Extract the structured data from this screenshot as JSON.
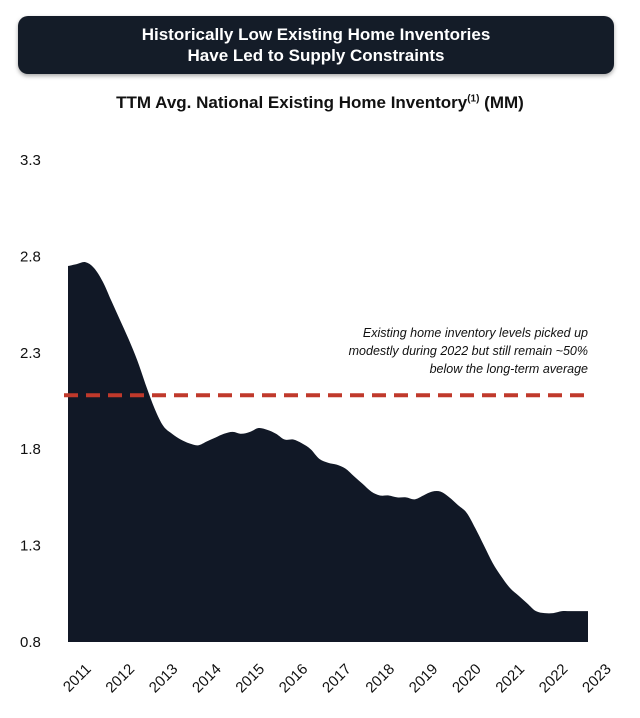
{
  "banner": {
    "line1": "Historically Low Existing Home Inventories",
    "line2": "Have Led to Supply Constraints"
  },
  "subtitle": {
    "text": "TTM Avg. National Existing Home Inventory",
    "superscript": "(1)",
    "unit": " (MM)"
  },
  "annotation": {
    "lines": [
      "Existing home inventory levels picked up",
      "modestly during 2022 but still remain ~50%",
      "below the long-term average"
    ]
  },
  "colors": {
    "area_fill": "#111826",
    "reference_line": "#c0392b",
    "banner_bg": "#141c28"
  },
  "chart_data": {
    "type": "area",
    "title": "TTM Avg. National Existing Home Inventory(1) (MM)",
    "xlabel": "",
    "ylabel": "",
    "ylim": [
      0.8,
      3.3
    ],
    "yticks": [
      "3.3",
      "2.8",
      "2.3",
      "1.8",
      "1.3",
      "0.8"
    ],
    "ytick_values": [
      3.3,
      2.8,
      2.3,
      1.8,
      1.3,
      0.8
    ],
    "xticks": [
      "2011",
      "2012",
      "2013",
      "2014",
      "2015",
      "2016",
      "2017",
      "2018",
      "2019",
      "2020",
      "2021",
      "2022",
      "2023"
    ],
    "xlim": [
      2011.0,
      2023.0
    ],
    "grid": false,
    "legend": "none",
    "reference_line": {
      "value": 2.08,
      "style": "dashed"
    },
    "series": [
      {
        "x": [
          2011.0,
          2011.2,
          2011.4,
          2011.6,
          2011.8,
          2012.0,
          2012.2,
          2012.4,
          2012.6,
          2012.8,
          2013.0,
          2013.2,
          2013.4,
          2013.6,
          2013.8,
          2014.0,
          2014.2,
          2014.4,
          2014.6,
          2014.8,
          2015.0,
          2015.2,
          2015.4,
          2015.6,
          2015.8,
          2016.0,
          2016.2,
          2016.4,
          2016.6,
          2016.8,
          2017.0,
          2017.2,
          2017.4,
          2017.6,
          2017.8,
          2018.0,
          2018.2,
          2018.4,
          2018.6,
          2018.8,
          2019.0,
          2019.2,
          2019.4,
          2019.6,
          2019.8,
          2020.0,
          2020.2,
          2020.4,
          2020.6,
          2020.8,
          2021.0,
          2021.2,
          2021.4,
          2021.6,
          2021.8,
          2022.0,
          2022.2,
          2022.4,
          2022.6,
          2022.8,
          2023.0
        ],
        "values": [
          2.75,
          2.76,
          2.77,
          2.74,
          2.67,
          2.57,
          2.47,
          2.37,
          2.26,
          2.13,
          2.01,
          1.92,
          1.88,
          1.85,
          1.83,
          1.82,
          1.84,
          1.86,
          1.88,
          1.89,
          1.88,
          1.89,
          1.91,
          1.9,
          1.88,
          1.85,
          1.85,
          1.83,
          1.8,
          1.75,
          1.73,
          1.72,
          1.7,
          1.66,
          1.62,
          1.58,
          1.56,
          1.56,
          1.55,
          1.55,
          1.54,
          1.56,
          1.58,
          1.58,
          1.55,
          1.51,
          1.47,
          1.39,
          1.3,
          1.21,
          1.14,
          1.08,
          1.04,
          1.0,
          0.96,
          0.95,
          0.95,
          0.96,
          0.96,
          0.96,
          0.96
        ]
      }
    ]
  }
}
